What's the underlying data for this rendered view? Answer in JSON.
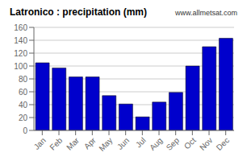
{
  "chart_data": {
    "type": "bar",
    "title": "Latronico : precipitation (mm)",
    "annotations": [
      "www.allmetsat.com"
    ],
    "categories": [
      "Jan",
      "Feb",
      "Mar",
      "Apr",
      "May",
      "Jun",
      "Jul",
      "Aug",
      "Sep",
      "Oct",
      "Nov",
      "Dec"
    ],
    "values": [
      105,
      97,
      83,
      83,
      54,
      41,
      21,
      44,
      59,
      100,
      130,
      143
    ],
    "color": "#0000CC",
    "ylim": [
      0,
      160
    ],
    "yticks": [
      0,
      20,
      40,
      60,
      80,
      100,
      120,
      140,
      160
    ],
    "grid": true
  }
}
